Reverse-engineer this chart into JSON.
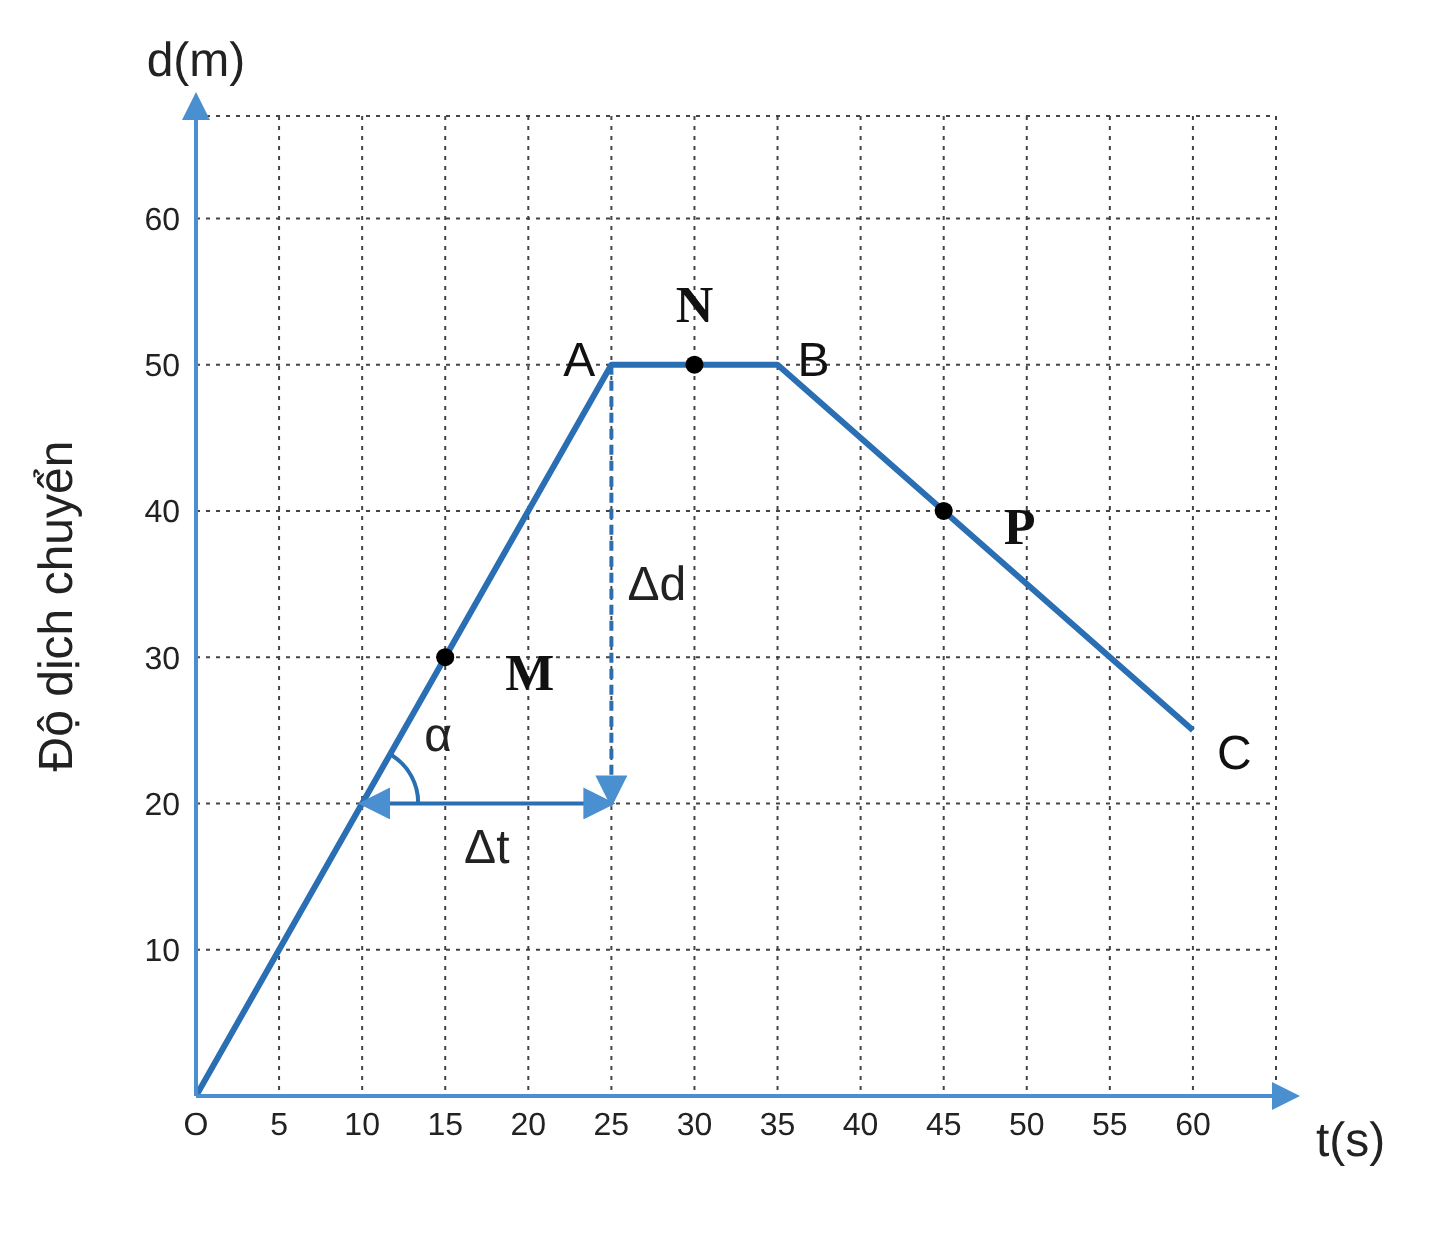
{
  "chart_data": {
    "type": "line",
    "xlabel": "t(s)",
    "ylabel": "Độ dịch chuyển",
    "xlim": [
      0,
      65
    ],
    "ylim": [
      0,
      67
    ],
    "xticks": [
      {
        "value": 0,
        "label": "O"
      },
      5,
      10,
      15,
      20,
      25,
      30,
      35,
      40,
      45,
      50,
      55,
      60
    ],
    "yticks": [
      {
        "value": 0,
        "label": null
      },
      10,
      20,
      30,
      40,
      50,
      60
    ],
    "grid": true,
    "series": [
      {
        "color": "#2a6fb3",
        "x": [
          0,
          25,
          35,
          60
        ],
        "values": [
          0,
          50,
          50,
          25
        ],
        "marker": "none",
        "line_style": "solid"
      },
      {
        "type": "scatter",
        "color": "#000000",
        "x": [
          15,
          30,
          45
        ],
        "values": [
          30,
          50,
          40
        ],
        "marker": "circle"
      }
    ],
    "annotations": [
      "d(m)",
      {
        "text": "A",
        "x": 25,
        "y": 50
      },
      {
        "text": "N",
        "x": 30,
        "y": 50
      },
      {
        "text": "B",
        "x": 35,
        "y": 50
      },
      {
        "text": "P",
        "x": 45,
        "y": 40
      },
      {
        "text": "C",
        "x": 60,
        "y": 25
      },
      {
        "text": "M",
        "x": 15,
        "y": 30
      },
      "α",
      "Δd",
      "Δt"
    ]
  }
}
